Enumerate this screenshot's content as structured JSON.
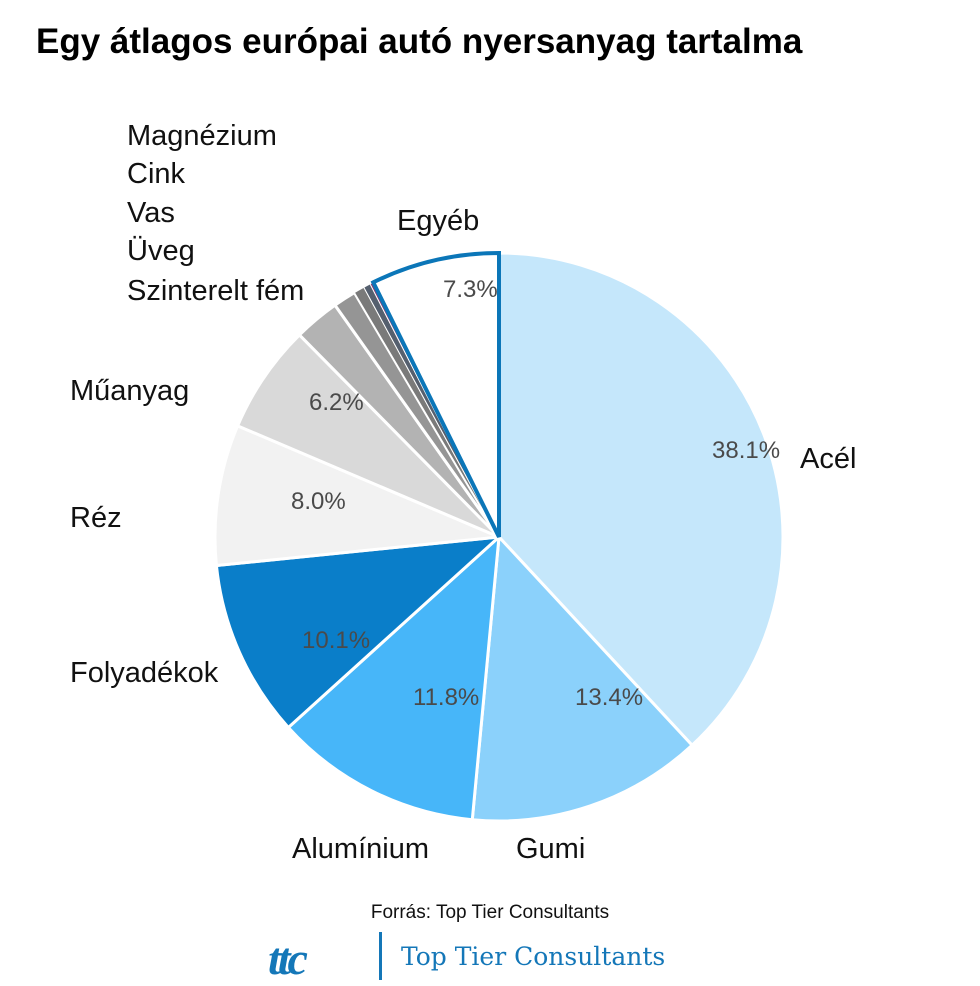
{
  "title": "Egy átlagos európai autó nyersanyag tartalma",
  "source": "Forrás: Top Tier Consultants",
  "logo": {
    "mark": "ttc",
    "text": "Top Tier Consultants",
    "color": "#1477b8"
  },
  "chart_data": {
    "type": "pie",
    "title": "Egy átlagos európai autó nyersanyag tartalma",
    "start": "12 o'clock",
    "direction": "clockwise",
    "slices": [
      {
        "label": "Acél",
        "value": 38.1,
        "value_label": "38.1%",
        "color": "#c5e7fb"
      },
      {
        "label": "Gumi",
        "value": 13.4,
        "value_label": "13.4%",
        "color": "#8bd1fb"
      },
      {
        "label": "Alumínium",
        "value": 11.8,
        "value_label": "11.8%",
        "color": "#47b6f9"
      },
      {
        "label": "Folyadékok",
        "value": 10.1,
        "value_label": "10.1%",
        "color": "#0a7ec9"
      },
      {
        "label": "Réz",
        "value": 8.0,
        "value_label": "8.0%",
        "color": "#f2f2f2"
      },
      {
        "label": "Műanyag",
        "value": 6.2,
        "value_label": "6.2%",
        "color": "#d9d9d9"
      },
      {
        "label": "Szinterelt fém",
        "value": 2.6,
        "value_label": "",
        "color": "#b3b3b3"
      },
      {
        "label": "Üveg",
        "value": 1.3,
        "value_label": "",
        "color": "#959595"
      },
      {
        "label": "Vas",
        "value": 0.6,
        "value_label": "",
        "color": "#7a7a7a"
      },
      {
        "label": "Cink",
        "value": 0.4,
        "value_label": "",
        "color": "#555f6e"
      },
      {
        "label": "Magnézium",
        "value": 0.2,
        "value_label": "",
        "color": "#8a3a6e"
      },
      {
        "label": "Egyéb",
        "value": 7.3,
        "value_label": "7.3%",
        "color": "#ffffff",
        "highlight": true,
        "outline_color": "#0b76b8"
      }
    ],
    "small_slices_legend": [
      "Magnézium",
      "Cink",
      "Vas",
      "Üveg",
      "Szinterelt fém"
    ]
  }
}
